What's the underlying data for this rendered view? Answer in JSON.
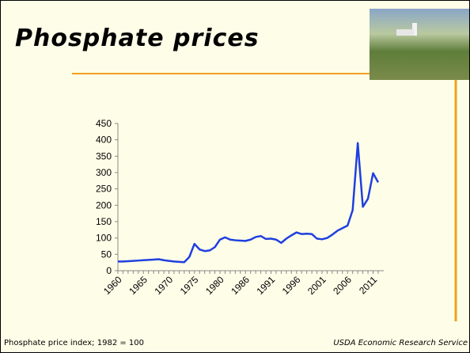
{
  "header": {
    "title": "Phosphate prices"
  },
  "footer": {
    "note": "Phosphate price index; 1982 = 100",
    "source": "USDA Economic Research Service"
  },
  "chart_data": {
    "type": "line",
    "categories": [
      "1960",
      null,
      null,
      null,
      null,
      "1965",
      null,
      null,
      null,
      null,
      "1970",
      null,
      null,
      null,
      null,
      "1975",
      null,
      null,
      null,
      null,
      "1980",
      null,
      null,
      null,
      null,
      "1986",
      null,
      null,
      null,
      null,
      "1991",
      null,
      null,
      null,
      null,
      "1996",
      null,
      null,
      null,
      null,
      "2001",
      null,
      null,
      null,
      null,
      "2006",
      null,
      null,
      null,
      null,
      "2011",
      null
    ],
    "series": [
      {
        "color": "#1f3fe0",
        "values": [
          28,
          28,
          29,
          30,
          31,
          32,
          33,
          34,
          35,
          32,
          30,
          28,
          27,
          26,
          42,
          82,
          65,
          60,
          62,
          72,
          95,
          102,
          95,
          93,
          92,
          91,
          95,
          103,
          106,
          97,
          98,
          95,
          85,
          98,
          108,
          117,
          112,
          113,
          112,
          98,
          96,
          100,
          110,
          122,
          130,
          138,
          185,
          390,
          195,
          220,
          298,
          270
        ]
      }
    ],
    "ylim": [
      0,
      450
    ],
    "yticks": [
      0,
      50,
      100,
      150,
      200,
      250,
      300,
      350,
      400,
      450
    ]
  }
}
